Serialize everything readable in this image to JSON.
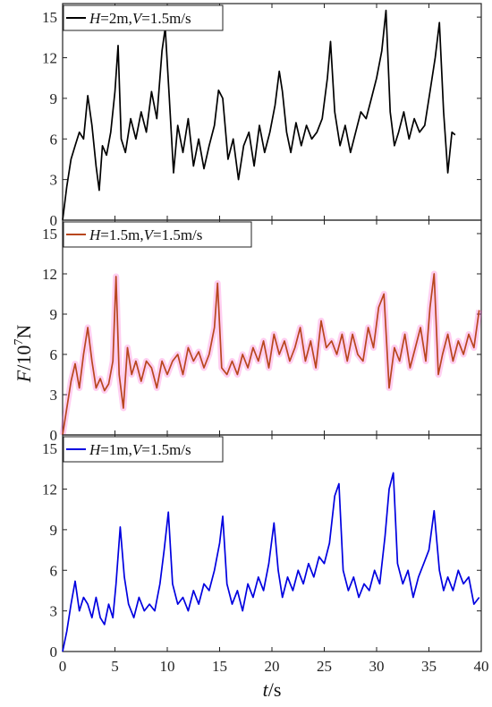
{
  "chart_data": [
    {
      "type": "line",
      "panel": "top",
      "legend": {
        "h_part": "H",
        "h_value": "=2m,",
        "v_part": "V",
        "v_value": "=1.5m/s",
        "placement": "top-left"
      },
      "color": "#000000",
      "ylim": [
        0,
        16
      ],
      "yticks": [
        "0",
        "3",
        "6",
        "9",
        "12",
        "15"
      ],
      "x": [
        0,
        0.4,
        0.8,
        1.2,
        1.6,
        2.0,
        2.4,
        2.8,
        3.2,
        3.5,
        3.8,
        4.2,
        4.6,
        5.0,
        5.3,
        5.6,
        6.0,
        6.5,
        7.0,
        7.5,
        8.0,
        8.5,
        9.0,
        9.5,
        9.8,
        10.2,
        10.6,
        11.0,
        11.5,
        12.0,
        12.5,
        13.0,
        13.5,
        14.0,
        14.5,
        14.9,
        15.3,
        15.8,
        16.3,
        16.8,
        17.3,
        17.8,
        18.3,
        18.8,
        19.3,
        19.8,
        20.3,
        20.7,
        21.0,
        21.4,
        21.8,
        22.3,
        22.8,
        23.3,
        23.8,
        24.3,
        24.8,
        25.3,
        25.6,
        26.0,
        26.5,
        27.0,
        27.5,
        28.0,
        28.5,
        29.0,
        29.5,
        30.0,
        30.5,
        30.9,
        31.3,
        31.7,
        32.1,
        32.6,
        33.1,
        33.6,
        34.1,
        34.6,
        35.1,
        35.6,
        36.0,
        36.4,
        36.8,
        37.2,
        37.5
      ],
      "y": [
        0,
        2.5,
        4.5,
        5.5,
        6.5,
        6.0,
        9.2,
        7.0,
        4.0,
        2.2,
        5.5,
        4.8,
        6.5,
        9.5,
        12.9,
        6.0,
        5.0,
        7.5,
        6.0,
        8.0,
        6.5,
        9.5,
        7.5,
        12.5,
        14.2,
        9.0,
        3.5,
        7.0,
        5.0,
        7.5,
        4.0,
        6.0,
        3.8,
        5.5,
        7.0,
        9.6,
        9.0,
        4.5,
        6.0,
        3.0,
        5.5,
        6.5,
        4.0,
        7.0,
        5.0,
        6.5,
        8.5,
        11.0,
        9.5,
        6.5,
        5.0,
        7.2,
        5.5,
        7.0,
        6.0,
        6.5,
        7.5,
        10.5,
        13.2,
        8.0,
        5.5,
        7.0,
        5.0,
        6.5,
        8.0,
        7.5,
        9.0,
        10.5,
        12.5,
        15.5,
        8.0,
        5.5,
        6.5,
        8.0,
        6.0,
        7.5,
        6.5,
        7.0,
        9.5,
        12.0,
        14.6,
        8.0,
        3.5,
        6.5,
        6.3
      ]
    },
    {
      "type": "line",
      "panel": "middle",
      "legend": {
        "h_part": "H",
        "h_value": "=1.5m,",
        "v_part": "V",
        "v_value": "=1.5m/s",
        "placement": "top-left"
      },
      "color": "#b8461e",
      "ylim": [
        0,
        16
      ],
      "yticks": [
        "0",
        "3",
        "6",
        "9",
        "12",
        "15"
      ],
      "x": [
        0,
        0.4,
        0.8,
        1.2,
        1.6,
        2.0,
        2.4,
        2.8,
        3.2,
        3.6,
        4.0,
        4.4,
        4.8,
        5.1,
        5.4,
        5.8,
        6.2,
        6.6,
        7.0,
        7.5,
        8.0,
        8.5,
        9.0,
        9.5,
        10.0,
        10.5,
        11.0,
        11.5,
        12.0,
        12.5,
        13.0,
        13.5,
        14.0,
        14.5,
        14.8,
        15.2,
        15.7,
        16.2,
        16.7,
        17.2,
        17.7,
        18.2,
        18.7,
        19.2,
        19.7,
        20.2,
        20.7,
        21.2,
        21.7,
        22.2,
        22.7,
        23.2,
        23.7,
        24.2,
        24.7,
        25.2,
        25.7,
        26.2,
        26.7,
        27.2,
        27.7,
        28.2,
        28.7,
        29.2,
        29.7,
        30.2,
        30.7,
        31.2,
        31.7,
        32.2,
        32.7,
        33.2,
        33.7,
        34.2,
        34.7,
        35.1,
        35.5,
        35.9,
        36.3,
        36.8,
        37.3,
        37.8,
        38.3,
        38.8,
        39.3,
        39.8
      ],
      "y": [
        0,
        2.0,
        4.0,
        5.3,
        3.5,
        6.0,
        8.0,
        5.5,
        3.5,
        4.2,
        3.3,
        3.8,
        5.5,
        11.8,
        4.5,
        2.0,
        6.5,
        4.5,
        5.5,
        4.0,
        5.5,
        5.0,
        3.5,
        5.5,
        4.5,
        5.5,
        6.0,
        4.5,
        6.5,
        5.5,
        6.2,
        5.0,
        6.0,
        8.0,
        11.3,
        5.0,
        4.5,
        5.5,
        4.5,
        6.0,
        5.0,
        6.5,
        5.5,
        7.0,
        5.0,
        7.5,
        6.0,
        7.0,
        5.5,
        6.5,
        8.0,
        5.5,
        7.0,
        5.0,
        8.5,
        6.5,
        7.0,
        6.0,
        7.5,
        5.5,
        7.5,
        6.0,
        5.5,
        8.0,
        6.5,
        9.5,
        10.5,
        3.5,
        6.5,
        5.5,
        7.5,
        5.0,
        6.5,
        8.0,
        5.5,
        9.5,
        12.0,
        4.5,
        6.0,
        7.5,
        5.5,
        7.0,
        6.0,
        7.5,
        6.5,
        9.3
      ]
    },
    {
      "type": "line",
      "panel": "bottom",
      "legend": {
        "h_part": "H",
        "h_value": "=1m,",
        "v_part": "V",
        "v_value": "=1.5m/s",
        "placement": "top-left"
      },
      "color": "#0000e0",
      "ylim": [
        0,
        16
      ],
      "yticks": [
        "0",
        "3",
        "6",
        "9",
        "12",
        "15"
      ],
      "x": [
        0,
        0.4,
        0.8,
        1.2,
        1.6,
        2.0,
        2.4,
        2.8,
        3.2,
        3.6,
        4.0,
        4.4,
        4.8,
        5.1,
        5.5,
        5.9,
        6.3,
        6.8,
        7.3,
        7.8,
        8.3,
        8.8,
        9.3,
        9.7,
        10.1,
        10.5,
        11.0,
        11.5,
        12.0,
        12.5,
        13.0,
        13.5,
        14.0,
        14.5,
        15.0,
        15.3,
        15.7,
        16.2,
        16.7,
        17.2,
        17.7,
        18.2,
        18.7,
        19.2,
        19.7,
        20.2,
        20.6,
        21.0,
        21.5,
        22.0,
        22.5,
        23.0,
        23.5,
        24.0,
        24.5,
        25.0,
        25.5,
        26.0,
        26.4,
        26.8,
        27.3,
        27.8,
        28.3,
        28.8,
        29.3,
        29.8,
        30.3,
        30.8,
        31.2,
        31.6,
        32.0,
        32.5,
        33.0,
        33.5,
        34.0,
        34.5,
        35.0,
        35.5,
        36.0,
        36.4,
        36.8,
        37.3,
        37.8,
        38.3,
        38.8,
        39.3,
        39.8
      ],
      "y": [
        0,
        1.5,
        3.5,
        5.2,
        3.0,
        4.0,
        3.5,
        2.5,
        4.0,
        2.5,
        2.0,
        3.5,
        2.5,
        5.0,
        9.2,
        5.5,
        3.5,
        2.5,
        4.0,
        3.0,
        3.5,
        3.0,
        5.0,
        7.5,
        10.3,
        5.0,
        3.5,
        4.0,
        3.0,
        4.5,
        3.5,
        5.0,
        4.5,
        6.0,
        8.0,
        10.0,
        5.0,
        3.5,
        4.5,
        3.0,
        5.0,
        4.0,
        5.5,
        4.5,
        6.5,
        9.5,
        6.0,
        4.0,
        5.5,
        4.5,
        6.0,
        5.0,
        6.5,
        5.5,
        7.0,
        6.5,
        8.0,
        11.5,
        12.4,
        6.0,
        4.5,
        5.5,
        4.0,
        5.0,
        4.5,
        6.0,
        5.0,
        8.5,
        12.0,
        13.2,
        6.5,
        5.0,
        6.0,
        4.0,
        5.5,
        6.5,
        7.5,
        10.4,
        6.0,
        4.5,
        5.5,
        4.5,
        6.0,
        5.0,
        5.5,
        3.5,
        4.0
      ]
    }
  ],
  "shared_axes": {
    "xlim": [
      0,
      40
    ],
    "xticks": [
      "0",
      "5",
      "10",
      "15",
      "20",
      "25",
      "30",
      "35",
      "40"
    ],
    "xlabel_italic": "t",
    "xlabel_rest": "/s",
    "ylabel_italic": "F",
    "ylabel_base": "/10",
    "ylabel_exp": "7",
    "ylabel_unit": "N"
  }
}
